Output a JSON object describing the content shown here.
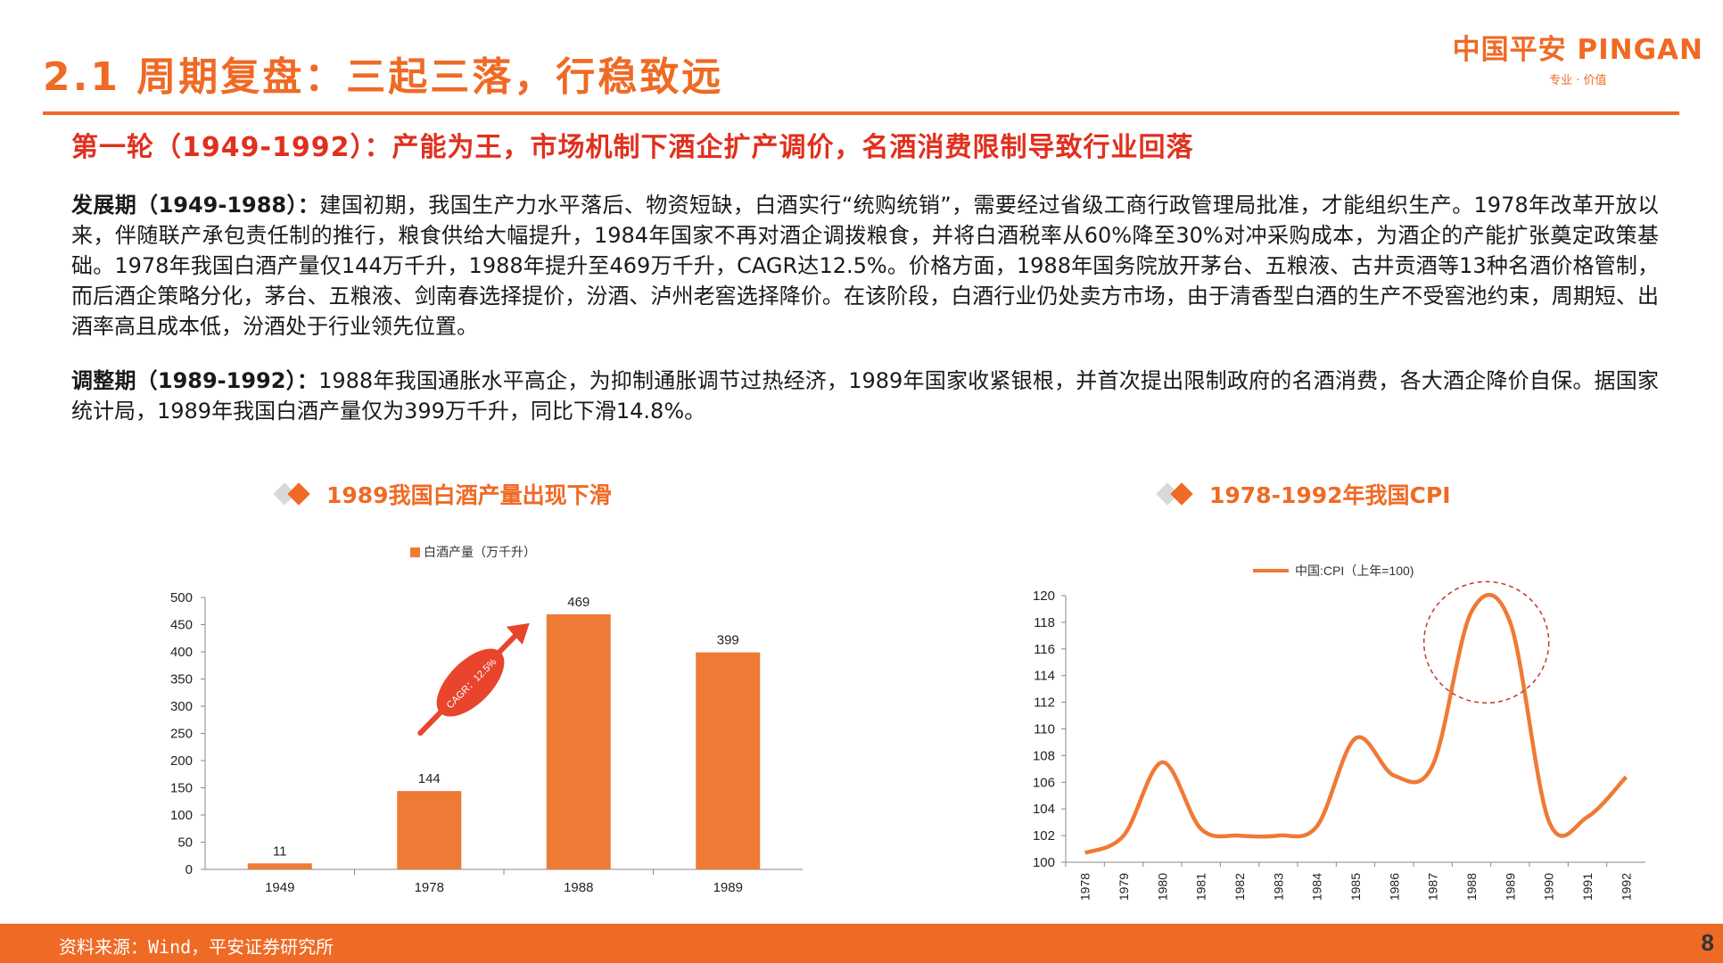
{
  "header": {
    "title": "2.1 周期复盘：三起三落，行稳致远",
    "logo_text": "中国平安 PINGAN",
    "logo_tagline": "专业 · 价值"
  },
  "subtitle": "第一轮（1949-1992）：产能为王，市场机制下酒企扩产调价，名酒消费限制导致行业回落",
  "paragraphs": {
    "p1_label": "发展期（1949-1988）：",
    "p1_text": "建国初期，我国生产力水平落后、物资短缺，白酒实行“统购统销”，需要经过省级工商行政管理局批准，才能组织生产。1978年改革开放以来，伴随联产承包责任制的推行，粮食供给大幅提升，1984年国家不再对酒企调拨粮食，并将白酒税率从60%降至30%对冲采购成本，为酒企的产能扩张奠定政策基础。1978年我国白酒产量仅144万千升，1988年提升至469万千升，CAGR达12.5%。价格方面，1988年国务院放开茅台、五粮液、古井贡酒等13种名酒价格管制，而后酒企策略分化，茅台、五粮液、剑南春选择提价，汾酒、泸州老窖选择降价。在该阶段，白酒行业仍处卖方市场，由于清香型白酒的生产不受窖池约束，周期短、出酒率高且成本低，汾酒处于行业领先位置。",
    "p2_label": "调整期（1989-1992）：",
    "p2_text": "1988年我国通胀水平高企，为抑制通胀调节过热经济，1989年国家收紧银根，并首次提出限制政府的名酒消费，各大酒企降价自保。据国家统计局，1989年我国白酒产量仅为399万千升，同比下滑14.8%。"
  },
  "chart_titles": {
    "left": "1989我国白酒产量出现下滑",
    "right": "1978-1992年我国CPI"
  },
  "chart_data": [
    {
      "type": "bar",
      "legend": "白酒产量（万千升）",
      "categories": [
        "1949",
        "1978",
        "1988",
        "1989"
      ],
      "values": [
        11,
        144,
        469,
        399
      ],
      "ylim": [
        0,
        500
      ],
      "yticks": [
        0,
        50,
        100,
        150,
        200,
        250,
        300,
        350,
        400,
        450,
        500
      ],
      "annotation": "CAGR：12.5%",
      "color": "#ef7a35"
    },
    {
      "type": "line",
      "legend": "中国:CPI（上年=100)",
      "x": [
        "1978",
        "1979",
        "1980",
        "1981",
        "1982",
        "1983",
        "1984",
        "1985",
        "1986",
        "1987",
        "1988",
        "1989",
        "1990",
        "1991",
        "1992"
      ],
      "values": [
        100.7,
        102.0,
        107.5,
        102.5,
        102.0,
        102.0,
        102.7,
        109.3,
        106.5,
        107.3,
        118.8,
        118.0,
        103.1,
        103.4,
        106.4
      ],
      "ylim": [
        100,
        120
      ],
      "yticks": [
        100,
        102,
        104,
        106,
        108,
        110,
        112,
        114,
        116,
        118,
        120
      ],
      "highlight": "1988-1989 peak circled",
      "color": "#ef7a35"
    }
  ],
  "footer": {
    "source": "资料来源：Wind，平安证券研究所",
    "page": "8"
  }
}
